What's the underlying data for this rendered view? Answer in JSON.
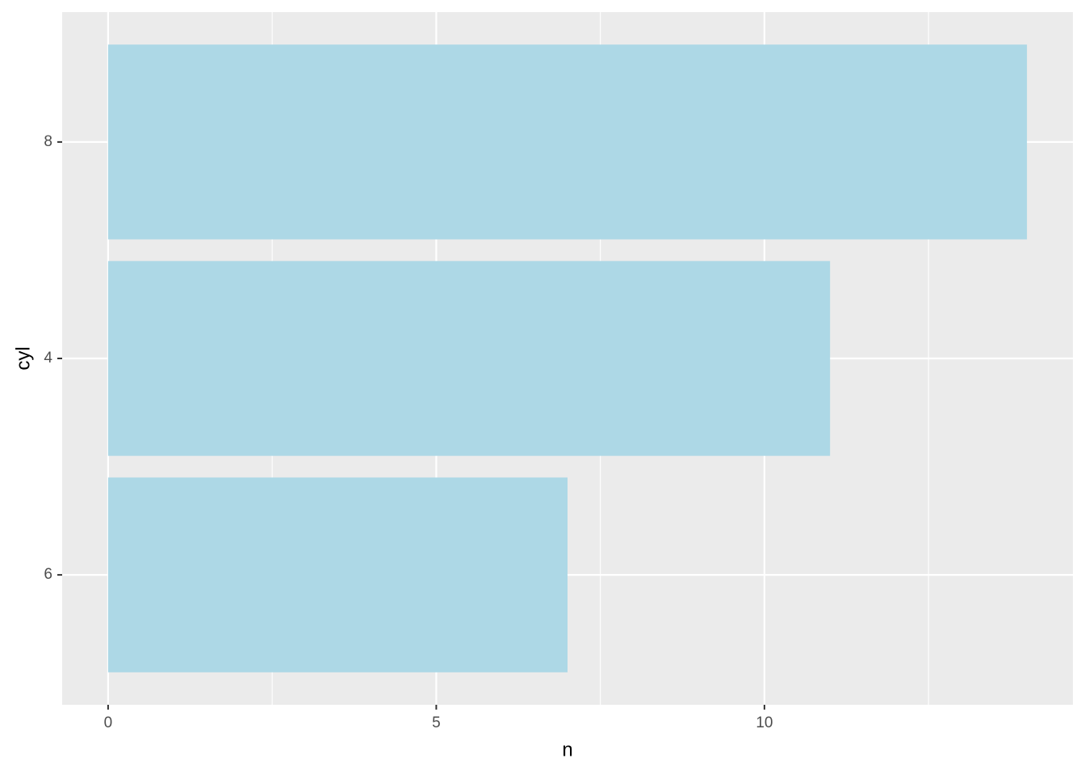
{
  "chart_data": {
    "type": "bar",
    "orientation": "horizontal",
    "x_label": "n",
    "y_label": "cyl",
    "categories": [
      "6",
      "4",
      "8"
    ],
    "values": [
      7,
      11,
      14
    ],
    "color": "#add8e6",
    "xlim": [
      -0.7,
      14.7
    ],
    "xticks": [
      0,
      5,
      10
    ],
    "xminorticks": [
      2.5,
      7.5,
      12.5
    ],
    "grid": true
  }
}
